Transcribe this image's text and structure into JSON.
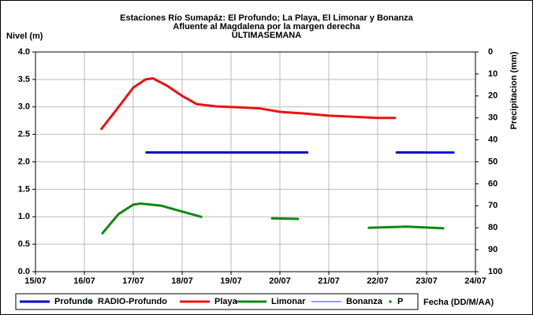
{
  "chart_data": {
    "type": "line",
    "title": [
      "Estaciones Río Sumapáz: El Profundo; La Playa, El Limonar y Bonanza",
      "Afluente al Magdalena por la margen derecha",
      "ULTIMASEMANA"
    ],
    "ylabel": "Nivel (m)",
    "y2label": "Precipitacion (mm)",
    "xlabel": "Fecha (DD/M/AA)",
    "xlim": [
      15,
      24
    ],
    "xticks": [
      {
        "value": 15,
        "label": "15/07"
      },
      {
        "value": 16,
        "label": "16/07"
      },
      {
        "value": 17,
        "label": "17/07"
      },
      {
        "value": 18,
        "label": "18/07"
      },
      {
        "value": 19,
        "label": "19/07"
      },
      {
        "value": 20,
        "label": "20/07"
      },
      {
        "value": 21,
        "label": "21/07"
      },
      {
        "value": 22,
        "label": "22/07"
      },
      {
        "value": 23,
        "label": "23/07"
      },
      {
        "value": 24,
        "label": "24/07"
      }
    ],
    "ylim": [
      0,
      4
    ],
    "yticks": [
      {
        "value": 0,
        "label": "0.0"
      },
      0.5,
      {
        "value": 1,
        "label": "1.0"
      },
      1.5,
      {
        "value": 2,
        "label": "2.0"
      },
      2.5,
      {
        "value": 3,
        "label": "3.0"
      },
      3.5,
      {
        "value": 4,
        "label": "4.0"
      }
    ],
    "y2lim": [
      100,
      0
    ],
    "y2_inverted": true,
    "y2ticks": [
      0,
      10,
      20,
      30,
      40,
      50,
      60,
      70,
      80,
      90,
      100
    ],
    "grid": true,
    "series": [
      {
        "name": "Profundo",
        "color": "#0000cc",
        "style": "line",
        "width": 3,
        "x": [
          17.27,
          20.56,
          21.5,
          22.39,
          23.55
        ],
        "values": [
          2.17,
          2.17,
          null,
          2.17,
          2.17
        ]
      },
      {
        "name": "RADIO-Profundo",
        "color": "#118811",
        "style": "dot",
        "x": [],
        "values": []
      },
      {
        "name": "Playa",
        "color": "#ee1111",
        "style": "line",
        "width": 3,
        "x": [
          16.35,
          16.7,
          17.0,
          17.25,
          17.4,
          17.7,
          18.0,
          18.3,
          18.7,
          19.2,
          19.6,
          20.0,
          20.5,
          21.0,
          21.5,
          22.0,
          22.35
        ],
        "values": [
          2.6,
          3.0,
          3.35,
          3.5,
          3.52,
          3.38,
          3.2,
          3.05,
          3.01,
          2.99,
          2.97,
          2.91,
          2.88,
          2.84,
          2.82,
          2.8,
          2.8
        ]
      },
      {
        "name": "Limonar",
        "color": "#118811",
        "style": "line",
        "width": 3,
        "x": [
          16.37,
          16.7,
          17.0,
          17.15,
          17.58,
          17.98,
          18.39,
          19.0,
          19.84,
          20.37,
          21.0,
          21.82,
          22.58,
          23.34
        ],
        "values": [
          0.7,
          1.05,
          1.22,
          1.24,
          1.2,
          1.1,
          1.0,
          null,
          0.97,
          0.96,
          null,
          0.8,
          0.82,
          0.79
        ]
      },
      {
        "name": "Bonanza",
        "color": "#3333ff",
        "style": "line",
        "width": 1,
        "x": [
          23.0,
          23.55
        ],
        "values": [
          2.18,
          2.18
        ]
      },
      {
        "name": "P",
        "color": "#118811",
        "style": "dot",
        "x": [],
        "values": []
      }
    ]
  }
}
